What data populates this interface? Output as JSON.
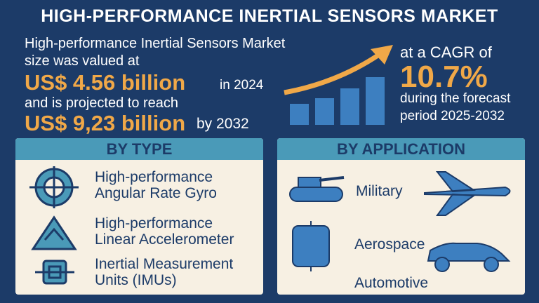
{
  "header": {
    "title": "HIGH-PERFORMANCE INERTIAL SENSORS MARKET"
  },
  "market": {
    "line1": "High-performance Inertial Sensors Market",
    "line2": "size was valued at",
    "value_2024": "US$ 4.56 billion",
    "year_2024": "in 2024",
    "line3": "and is projected to reach",
    "value_2032": "US$ 9,23 billion",
    "year_2032": "by 2032"
  },
  "cagr": {
    "prefix": "at a CAGR of",
    "value": "10.7%",
    "line1": "during the forecast",
    "line2": "period 2025-2032"
  },
  "by_type": {
    "heading": "BY TYPE",
    "items": [
      [
        "High-performance",
        "Angular Rate Gyro"
      ],
      [
        "High-performance",
        "Linear Accelerometer"
      ],
      [
        "Inertial Measurement",
        "Units (IMUs)"
      ]
    ]
  },
  "by_application": {
    "heading": "BY APPLICATION",
    "items": [
      "Military",
      "Aerospace",
      "Automotive"
    ]
  }
}
